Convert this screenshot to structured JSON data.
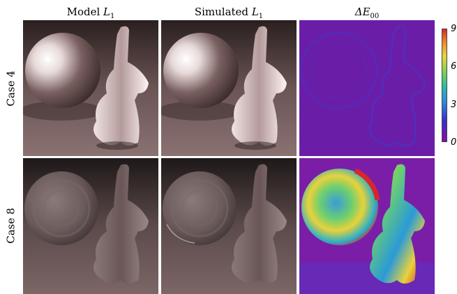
{
  "columns": {
    "model": {
      "prefix": "Model ",
      "var": "L",
      "sub": "1"
    },
    "simulated": {
      "prefix": "Simulated ",
      "var": "L",
      "sub": "1"
    },
    "delta": {
      "symbol": "ΔE",
      "sub": "00"
    }
  },
  "rows": [
    {
      "label": "Case 4"
    },
    {
      "label": "Case 8"
    }
  ],
  "colorbar": {
    "ticks": [
      "9",
      "6",
      "3",
      "0"
    ],
    "colormap": [
      "#8a0aa8",
      "#3a2ad0",
      "#2b8de0",
      "#2dbfa0",
      "#7fd050",
      "#e9d43a",
      "#f08a2a",
      "#d8262a"
    ]
  }
}
